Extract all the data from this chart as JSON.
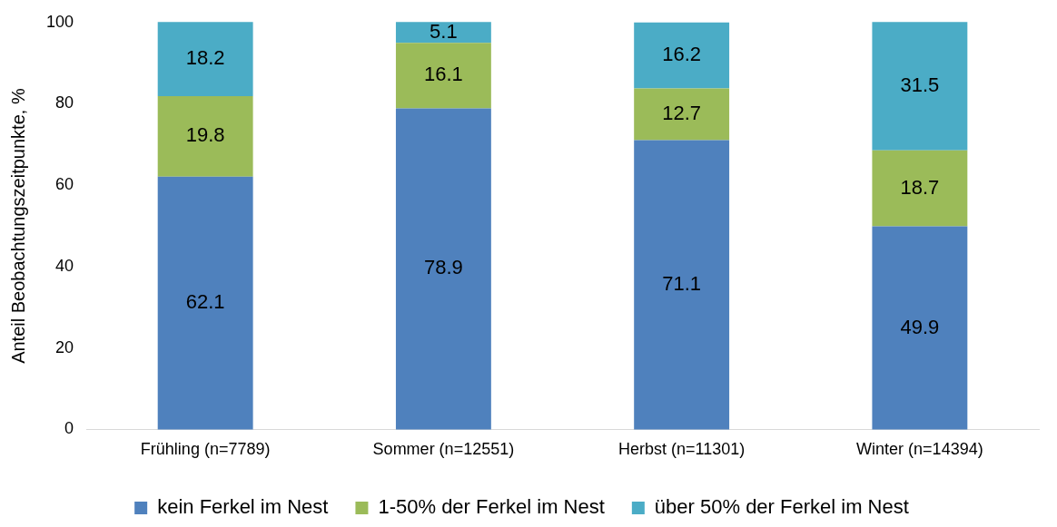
{
  "chart_data": {
    "type": "bar",
    "stacked": true,
    "ylabel": "Anteil Beobachtungszeitpunkte, %",
    "categories": [
      "Frühling (n=7789)",
      "Sommer (n=12551)",
      "Herbst (n=11301)",
      "Winter (n=14394)"
    ],
    "series": [
      {
        "name": "kein Ferkel im Nest",
        "color": "#4f81bd",
        "values": [
          62.1,
          78.9,
          71.1,
          49.9
        ]
      },
      {
        "name": "1-50% der Ferkel im Nest",
        "color": "#9bbb59",
        "values": [
          19.8,
          16.1,
          12.7,
          18.7
        ]
      },
      {
        "name": "über 50% der Ferkel im Nest",
        "color": "#4bacc6",
        "values": [
          18.2,
          5.1,
          16.2,
          31.5
        ]
      }
    ],
    "ylim": [
      0,
      100
    ],
    "yticks": [
      0,
      20,
      40,
      60,
      80,
      100
    ],
    "grid": false,
    "legend": "bottom",
    "data_labels": true
  }
}
